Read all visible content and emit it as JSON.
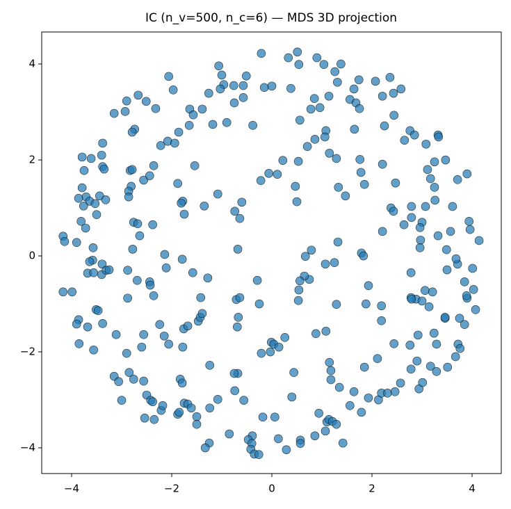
{
  "chart_data": {
    "type": "scatter",
    "title": "IC (n_v=500, n_c=6) — MDS 3D projection",
    "color": "#1f77b4",
    "xlim": [
      -4.597,
      4.583
    ],
    "ylim": [
      -4.536,
      4.667
    ],
    "xticks": [
      {
        "value": -4,
        "label": "−4"
      },
      {
        "value": -2,
        "label": "−2"
      },
      0,
      2,
      4
    ],
    "yticks": [
      {
        "value": -4,
        "label": "−4"
      },
      {
        "value": -2,
        "label": "−2"
      },
      0,
      2,
      4
    ],
    "x": [
      -0.21,
      0.33,
      0.51,
      0.54,
      0.9,
      1.04,
      1.38,
      1.26,
      1.31,
      1.74,
      2.07,
      2.36,
      2.58,
      2.43,
      2.21,
      1.64,
      1.56,
      1.68,
      1.75,
      1.14,
      0.96,
      0.85,
      0.78,
      0.56,
      1.65,
      2.25,
      2.44,
      2.76,
      2.85,
      2.65,
      3.32,
      3.33,
      3.08,
      -2.06,
      -1.97,
      -1.64,
      -1.57,
      -1.39,
      -1.26,
      -1.0,
      -1.06,
      -0.96,
      -0.76,
      -0.57,
      -0.51,
      -0.57,
      -0.75,
      -1.03,
      -0.15,
      0.0,
      0.38,
      -0.38,
      -0.9,
      -1.18,
      -1.65,
      -1.86,
      -2.08,
      -1.94,
      -2.22,
      -2.32,
      -2.51,
      -2.67,
      -2.9,
      -3.15,
      -2.93,
      -2.74,
      -2.79,
      -3.38,
      -3.79,
      -3.61,
      -3.4,
      -3.38,
      -3.35,
      -3.75,
      -3.79,
      -3.71,
      -3.86,
      -3.64,
      -3.76,
      -3.53,
      -3.44,
      -3.32,
      -3.5,
      -3.81,
      -3.72,
      -4.17,
      -4.14,
      -3.9,
      -3.57,
      -3.58,
      -3.64,
      -3.68,
      -3.56,
      -3.39,
      -3.4,
      -3.31,
      -3.25,
      -4.17,
      -3.99,
      -3.51,
      -3.47,
      -3.86,
      -3.9,
      -3.68,
      -3.38,
      -3.11,
      -3.56,
      -3.85,
      -2.9,
      -3.15,
      -3.06,
      -2.85,
      -2.76,
      -2.56,
      -3.0,
      -2.5,
      -2.42,
      -2.38,
      -2.54,
      -2.35,
      -2.21,
      -2.18,
      -1.88,
      -1.85,
      -1.75,
      -1.68,
      -1.61,
      -1.5,
      -1.5,
      -1.24,
      -1.08,
      -1.25,
      -1.33,
      -0.85,
      -0.56,
      -0.74,
      -0.68,
      -0.75,
      -1.24,
      -1.83,
      -1.79,
      -2.6,
      -2.56,
      -2.24,
      -2.15,
      -2.06,
      -1.78,
      -1.76,
      -1.68,
      -1.47,
      -1.43,
      -1.39,
      -1.42,
      -2.88,
      -2.36,
      -2.69,
      -2.44,
      -2.43,
      -2.88,
      -2.14,
      -2.11,
      -1.79,
      -1.58,
      -1.28,
      -0.71,
      -0.64,
      -0.67,
      -0.69,
      -0.25,
      -0.68,
      -0.29,
      -0.21,
      -0.01,
      0.04,
      -0.03,
      0.14,
      0.26,
      -0.18,
      -0.39,
      -0.47,
      -0.4,
      -0.42,
      -0.35,
      -0.26,
      0.06,
      0.13,
      0.29,
      0.57,
      0.57,
      0.86,
      1.07,
      1.1,
      1.14,
      1.21,
      1.29,
      1.42,
      0.94,
      0.4,
      0.44,
      1.15,
      1.18,
      1.18,
      1.35,
      1.56,
      1.79,
      1.64,
      1.93,
      2.13,
      1.85,
      2.11,
      2.19,
      2.31,
      2.46,
      2.57,
      2.78,
      2.9,
      2.94,
      3.01,
      3.17,
      3.29,
      3.51,
      3.67,
      3.72,
      3.76,
      2.44,
      2.76,
      3.24,
      3.29,
      3.46,
      3.75,
      3.85,
      4.07,
      3.9,
      3.89,
      4.03,
      3.85,
      4.01,
      3.5,
      3.71,
      3.68,
      3.49,
      4.14,
      3.96,
      3.94,
      3.57,
      3.32,
      3.0,
      2.96,
      2.97,
      2.96,
      2.79,
      2.64,
      2.38,
      2.43,
      2.21,
      2.79,
      3.07,
      3.26,
      3.61,
      3.25,
      3.17,
      3.11,
      3.25,
      3.47,
      3.71,
      3.9,
      2.47,
      2.21,
      1.85,
      1.78,
      1.76,
      1.29,
      1.15,
      1.08,
      0.86,
      1.06,
      0.71,
      0.53,
      0.47,
      0.5,
      0.22,
      0.11,
      -0.06,
      -0.22,
      1.33,
      1.47,
      1.32,
      0.79,
      0.67,
      1.07,
      1.25,
      1.79,
      1.83,
      1.93,
      1.88,
      2.19,
      2.19,
      1.29,
      1.08,
      0.88,
      0.75,
      0.65,
      0.56,
      0.54,
      0.53,
      2.78,
      2.88,
      3.0,
      3.06,
      3.21,
      3.14,
      3.46,
      2.78,
      2.79,
      2.92,
      -1.78,
      -1.75,
      -1.81,
      -1.88,
      -1.54,
      -1.35,
      -1.08,
      -0.74,
      -0.64,
      -0.6,
      -2.38,
      -2.56,
      -2.36,
      -2.44,
      -2.83,
      -2.79,
      -2.81,
      -2.86,
      -2.86,
      -2.76,
      -2.68,
      -2.64,
      -2.78
    ],
    "values": [
      4.22,
      4.13,
      4.25,
      3.99,
      4.13,
      3.99,
      4.0,
      3.84,
      3.62,
      3.67,
      3.64,
      3.72,
      3.48,
      3.39,
      3.33,
      3.48,
      3.26,
      3.19,
      3.07,
      3.33,
      3.09,
      3.28,
      3.06,
      2.83,
      2.64,
      2.71,
      2.93,
      2.61,
      2.52,
      2.41,
      2.52,
      2.48,
      2.33,
      3.74,
      3.46,
      3.06,
      2.94,
      3.06,
      3.39,
      3.77,
      3.96,
      3.57,
      3.55,
      3.55,
      3.75,
      3.3,
      3.19,
      3.48,
      3.51,
      3.54,
      3.49,
      2.72,
      2.78,
      2.74,
      2.72,
      2.58,
      2.39,
      2.35,
      2.3,
      3.07,
      3.22,
      3.35,
      3.23,
      2.97,
      3.01,
      2.64,
      2.58,
      2.35,
      2.06,
      2.03,
      2.1,
      1.86,
      1.81,
      1.78,
      1.42,
      1.23,
      1.2,
      1.14,
      1.04,
      1.09,
      1.25,
      1.17,
      0.86,
      0.72,
      0.58,
      0.41,
      0.3,
      0.28,
      0.17,
      -0.09,
      -0.12,
      -0.36,
      -0.35,
      -0.17,
      -0.39,
      -0.3,
      -0.29,
      -0.75,
      -0.75,
      -1.12,
      -1.14,
      -1.33,
      -1.42,
      -1.48,
      -1.41,
      -1.64,
      -1.96,
      -1.83,
      -2.03,
      -2.51,
      -2.62,
      -2.43,
      -2.57,
      -2.61,
      -3.01,
      -2.9,
      -3.01,
      -3.04,
      -3.38,
      -3.41,
      -3.22,
      -3.12,
      -3.3,
      -3.26,
      -3.07,
      -3.09,
      -3.17,
      -3.35,
      -3.51,
      -3.17,
      -2.99,
      -3.9,
      -4.0,
      -3.71,
      -3.01,
      -2.81,
      -2.45,
      -2.45,
      -2.28,
      -2.57,
      -2.65,
      -1.9,
      -1.64,
      -1.43,
      -1.67,
      -1.84,
      -1.9,
      -1.52,
      -1.46,
      -1.36,
      -1.28,
      -1.2,
      -0.87,
      -0.88,
      -0.83,
      -0.51,
      -0.54,
      -0.61,
      -0.3,
      0.03,
      -0.25,
      -0.07,
      -0.35,
      -0.46,
      -0.91,
      -0.87,
      -1.28,
      -1.48,
      -1.0,
      0.14,
      -0.51,
      -2.03,
      -1.8,
      -1.84,
      -2.0,
      -1.9,
      -1.7,
      -3.36,
      -3.75,
      -3.83,
      -3.91,
      -4.03,
      -4.13,
      -4.14,
      -3.36,
      -3.81,
      -4.04,
      -3.84,
      -3.91,
      -3.75,
      -3.65,
      -3.46,
      -3.41,
      -3.45,
      -3.51,
      -3.9,
      -3.28,
      -2.94,
      -2.43,
      -2.22,
      -2.39,
      -2.58,
      -2.74,
      -3.12,
      -3.26,
      -2.83,
      -2.96,
      -3.0,
      -2.32,
      -2.14,
      -2.86,
      -2.86,
      -2.83,
      -2.65,
      -2.36,
      -2.19,
      -2.77,
      -2.64,
      -2.3,
      -2.41,
      -2.32,
      -2.1,
      -1.84,
      -1.93,
      -1.83,
      -1.86,
      -1.61,
      -1.84,
      -1.3,
      -1.3,
      -1.43,
      -1.12,
      -0.88,
      -0.83,
      -0.7,
      -0.54,
      -0.26,
      -0.29,
      -0.17,
      -0.06,
      0.13,
      0.32,
      0.55,
      0.72,
      0.51,
      0.42,
      0.7,
      0.59,
      0.33,
      0.17,
      0.8,
      0.65,
      1.0,
      0.93,
      0.51,
      1.03,
      1.03,
      1.16,
      1.03,
      1.43,
      1.61,
      1.8,
      1.96,
      2.0,
      1.59,
      1.71,
      1.52,
      1.91,
      1.49,
      1.74,
      2.01,
      2.03,
      2.14,
      2.61,
      2.43,
      2.48,
      2.28,
      1.97,
      1.45,
      1.13,
      1.99,
      1.7,
      1.72,
      1.57,
      1.43,
      1.25,
      0.29,
      0.12,
      -0.01,
      -0.17,
      -0.14,
      0.06,
      0.0,
      -0.62,
      -1.0,
      -1.04,
      -1.35,
      -1.01,
      -1.57,
      -1.62,
      -0.49,
      -0.42,
      -0.52,
      -0.71,
      -0.93,
      -0.35,
      -0.9,
      -0.94,
      -0.72,
      -0.75,
      -1.06,
      -1.28,
      -0.87,
      -0.9,
      -1.65,
      1.14,
      0.87,
      1.1,
      1.51,
      1.88,
      1.04,
      1.29,
      0.93,
      0.78,
      1.12,
      0.65,
      1.58,
      1.88,
      1.67,
      1.78,
      1.8,
      1.45,
      1.35,
      1.23,
      0.7,
      0.67,
      0.42,
      0.14
    ]
  }
}
